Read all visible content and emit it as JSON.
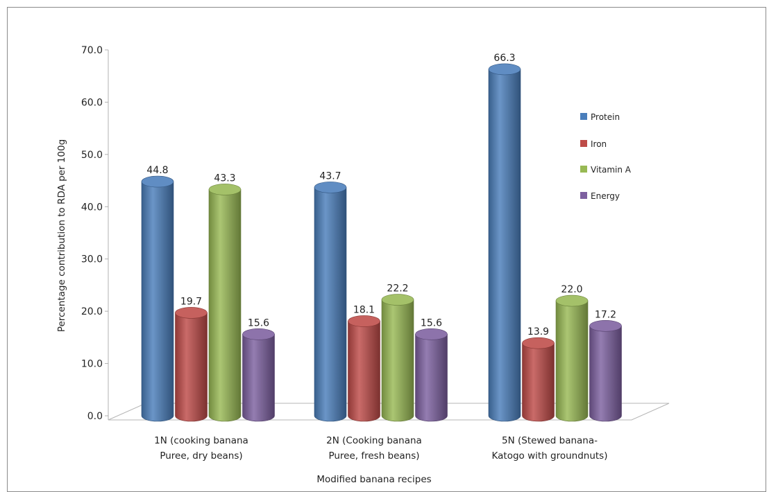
{
  "chart_data": {
    "type": "bar",
    "style": "3d-cylinder",
    "title": "",
    "xlabel": "Modified  banana recipes",
    "ylabel": "Percentage contribution  to RDA per 100g",
    "ylim": [
      0,
      70
    ],
    "yticks": [
      "0.0",
      "10.0",
      "20.0",
      "30.0",
      "40.0",
      "50.0",
      "60.0",
      "70.0"
    ],
    "grid": false,
    "legend_position": "right",
    "categories": [
      [
        "1N (cooking banana",
        "Puree, dry beans)"
      ],
      [
        "2N (Cooking banana",
        "Puree, fresh beans)"
      ],
      [
        "5N (Stewed banana-",
        "Katogo with groundnuts)"
      ]
    ],
    "series": [
      {
        "name": "Protein",
        "color": "#4a7ebb",
        "values": [
          44.8,
          43.7,
          66.3
        ]
      },
      {
        "name": "Iron",
        "color": "#be4b48",
        "values": [
          19.7,
          18.1,
          13.9
        ]
      },
      {
        "name": "Vitamin A",
        "color": "#98b954",
        "values": [
          43.3,
          22.2,
          22.0
        ]
      },
      {
        "name": "Energy",
        "color": "#7d60a0",
        "values": [
          15.6,
          15.6,
          17.2
        ]
      }
    ],
    "data_labels": [
      [
        "44.8",
        "43.7",
        "66.3"
      ],
      [
        "19.7",
        "18.1",
        "13.9"
      ],
      [
        "43.3",
        "22.2",
        "22.0"
      ],
      [
        "15.6",
        "15.6",
        "17.2"
      ]
    ]
  }
}
